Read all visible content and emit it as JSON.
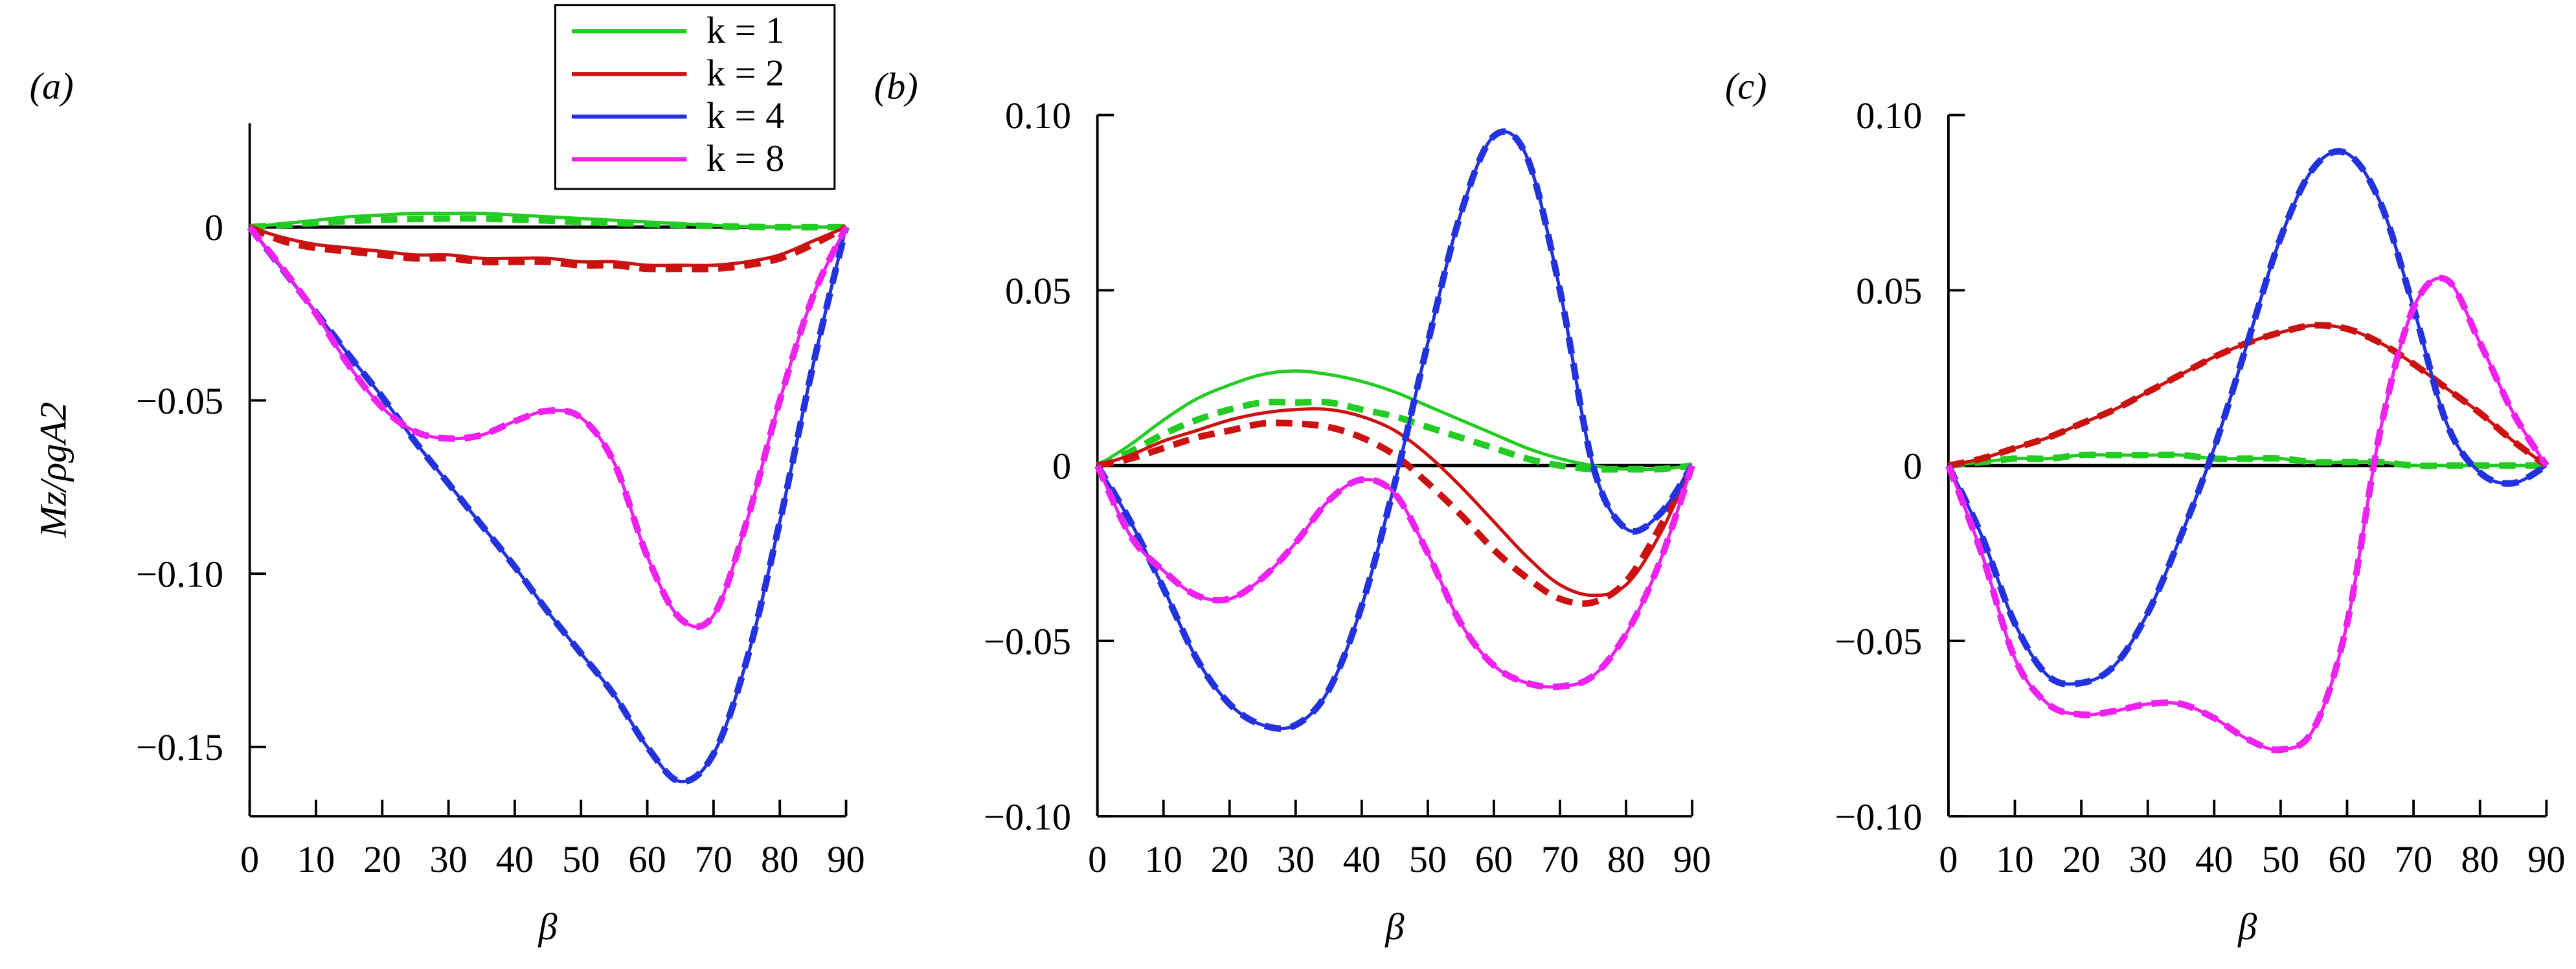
{
  "chart_data": [
    {
      "type": "line",
      "panel_label": "(a)",
      "xlabel": "β",
      "ylabel": "Mz/ρgA2",
      "x": [
        0,
        5,
        10,
        15,
        20,
        25,
        30,
        35,
        40,
        45,
        50,
        55,
        60,
        65,
        70,
        75,
        80,
        85,
        90
      ],
      "xlim": [
        0,
        90
      ],
      "xticks": [
        0,
        10,
        20,
        30,
        40,
        50,
        60,
        70,
        80,
        90
      ],
      "ylim": [
        -0.17,
        0.03
      ],
      "yticks": [
        0,
        {
          "value": -0.05,
          "label": "−0.05"
        },
        {
          "value": -0.1,
          "label": "−0.10"
        },
        {
          "value": -0.15,
          "label": "−0.15"
        }
      ],
      "legend": "top-center",
      "series": [
        {
          "name": "k = 1",
          "color": "#22cc22",
          "values": [
            0,
            0.001,
            0.002,
            0.003,
            0.0035,
            0.004,
            0.004,
            0.004,
            0.0035,
            0.003,
            0.0025,
            0.002,
            0.0015,
            0.001,
            0.0005,
            0.0002,
            0,
            0,
            0
          ],
          "dashed_values": [
            0,
            0.0006,
            0.0012,
            0.0018,
            0.0021,
            0.0024,
            0.0025,
            0.0025,
            0.0022,
            0.0019,
            0.0015,
            0.0012,
            0.0009,
            0.0006,
            0.0003,
            0.0001,
            0,
            0,
            0
          ]
        },
        {
          "name": "k = 2",
          "color": "#cc1111",
          "values": [
            0,
            -0.003,
            -0.005,
            -0.006,
            -0.007,
            -0.008,
            -0.008,
            -0.009,
            -0.009,
            -0.009,
            -0.01,
            -0.01,
            -0.011,
            -0.011,
            -0.011,
            -0.01,
            -0.008,
            -0.004,
            0
          ],
          "dashed_values": [
            0,
            -0.004,
            -0.006,
            -0.007,
            -0.008,
            -0.009,
            -0.009,
            -0.01,
            -0.01,
            -0.01,
            -0.011,
            -0.011,
            -0.012,
            -0.012,
            -0.012,
            -0.011,
            -0.009,
            -0.005,
            0
          ]
        },
        {
          "name": "k = 4",
          "color": "#2233dd",
          "values": [
            0,
            -0.0123,
            -0.0246,
            -0.037,
            -0.049,
            -0.062,
            -0.074,
            -0.086,
            -0.098,
            -0.111,
            -0.123,
            -0.135,
            -0.15,
            -0.16,
            -0.152,
            -0.125,
            -0.085,
            -0.04,
            0
          ],
          "dashed_values": [
            0,
            -0.0123,
            -0.0246,
            -0.037,
            -0.049,
            -0.062,
            -0.074,
            -0.086,
            -0.098,
            -0.111,
            -0.123,
            -0.135,
            -0.15,
            -0.16,
            -0.152,
            -0.125,
            -0.085,
            -0.04,
            0
          ]
        },
        {
          "name": "k = 8",
          "color": "#ee22ee",
          "values": [
            0,
            -0.012,
            -0.025,
            -0.04,
            -0.052,
            -0.059,
            -0.061,
            -0.06,
            -0.056,
            -0.053,
            -0.055,
            -0.068,
            -0.095,
            -0.113,
            -0.112,
            -0.085,
            -0.05,
            -0.02,
            0
          ],
          "dashed_values": [
            0,
            -0.012,
            -0.025,
            -0.04,
            -0.052,
            -0.059,
            -0.061,
            -0.06,
            -0.056,
            -0.053,
            -0.055,
            -0.068,
            -0.095,
            -0.113,
            -0.112,
            -0.085,
            -0.05,
            -0.02,
            0
          ]
        }
      ]
    },
    {
      "type": "line",
      "panel_label": "(b)",
      "xlabel": "β",
      "x": [
        0,
        5,
        10,
        15,
        20,
        25,
        30,
        35,
        40,
        45,
        50,
        55,
        60,
        65,
        70,
        75,
        80,
        85,
        90
      ],
      "xlim": [
        0,
        90
      ],
      "xticks": [
        0,
        10,
        20,
        30,
        40,
        50,
        60,
        70,
        80,
        90
      ],
      "ylim": [
        -0.1,
        0.1
      ],
      "yticks": [
        {
          "value": -0.1,
          "label": "−0.10"
        },
        {
          "value": -0.05,
          "label": "−0.05"
        },
        0,
        0.05,
        {
          "value": 0.1,
          "label": "0.10"
        }
      ],
      "series": [
        {
          "color": "#22cc22",
          "values": [
            0,
            0.006,
            0.013,
            0.019,
            0.023,
            0.026,
            0.027,
            0.026,
            0.024,
            0.021,
            0.017,
            0.013,
            0.009,
            0.005,
            0.002,
            0,
            -0.001,
            -0.001,
            0
          ],
          "dashed_values": [
            0,
            0.004,
            0.009,
            0.013,
            0.016,
            0.018,
            0.018,
            0.018,
            0.016,
            0.014,
            0.011,
            0.008,
            0.005,
            0.002,
            0,
            -0.001,
            -0.001,
            -0.001,
            0
          ]
        },
        {
          "color": "#cc1111",
          "values": [
            0,
            0.003,
            0.007,
            0.01,
            0.013,
            0.015,
            0.016,
            0.016,
            0.014,
            0.01,
            0.003,
            -0.006,
            -0.016,
            -0.026,
            -0.034,
            -0.037,
            -0.034,
            -0.02,
            0
          ],
          "dashed_values": [
            0,
            0.002,
            0.005,
            0.008,
            0.01,
            0.012,
            0.012,
            0.011,
            0.008,
            0.003,
            -0.005,
            -0.014,
            -0.024,
            -0.032,
            -0.038,
            -0.039,
            -0.033,
            -0.018,
            0
          ]
        },
        {
          "color": "#2233dd",
          "values": [
            0,
            -0.016,
            -0.035,
            -0.055,
            -0.068,
            -0.074,
            -0.074,
            -0.064,
            -0.04,
            -0.005,
            0.035,
            0.072,
            0.094,
            0.088,
            0.05,
            0,
            -0.018,
            -0.014,
            0
          ],
          "dashed_values": [
            0,
            -0.016,
            -0.035,
            -0.055,
            -0.068,
            -0.074,
            -0.074,
            -0.064,
            -0.04,
            -0.005,
            0.035,
            0.072,
            0.094,
            0.088,
            0.05,
            0,
            -0.018,
            -0.014,
            0
          ]
        },
        {
          "color": "#ee22ee",
          "values": [
            0,
            -0.02,
            -0.03,
            -0.037,
            -0.038,
            -0.032,
            -0.022,
            -0.01,
            -0.004,
            -0.008,
            -0.025,
            -0.045,
            -0.057,
            -0.062,
            -0.063,
            -0.06,
            -0.048,
            -0.028,
            0
          ],
          "dashed_values": [
            0,
            -0.02,
            -0.03,
            -0.037,
            -0.038,
            -0.032,
            -0.022,
            -0.01,
            -0.004,
            -0.008,
            -0.025,
            -0.045,
            -0.057,
            -0.062,
            -0.063,
            -0.06,
            -0.048,
            -0.028,
            0
          ]
        }
      ]
    },
    {
      "type": "line",
      "panel_label": "(c)",
      "xlabel": "β",
      "x": [
        0,
        5,
        10,
        15,
        20,
        25,
        30,
        35,
        40,
        45,
        50,
        55,
        60,
        65,
        70,
        75,
        80,
        85,
        90
      ],
      "xlim": [
        0,
        90
      ],
      "xticks": [
        0,
        10,
        20,
        30,
        40,
        50,
        60,
        70,
        80,
        90
      ],
      "ylim": [
        -0.1,
        0.1
      ],
      "yticks": [
        {
          "value": -0.1,
          "label": "−0.10"
        },
        {
          "value": -0.05,
          "label": "−0.05"
        },
        0,
        0.05,
        {
          "value": 0.1,
          "label": "0.10"
        }
      ],
      "series": [
        {
          "color": "#22cc22",
          "values": [
            0,
            0.001,
            0.002,
            0.002,
            0.003,
            0.003,
            0.003,
            0.003,
            0.002,
            0.002,
            0.002,
            0.001,
            0.001,
            0.001,
            0,
            0,
            0,
            0,
            0
          ],
          "dashed_values": [
            0,
            0.001,
            0.002,
            0.002,
            0.003,
            0.003,
            0.003,
            0.003,
            0.002,
            0.002,
            0.002,
            0.001,
            0.001,
            0.001,
            0,
            0,
            0,
            0,
            0
          ]
        },
        {
          "color": "#cc1111",
          "values": [
            0,
            0.002,
            0.005,
            0.008,
            0.012,
            0.016,
            0.021,
            0.026,
            0.031,
            0.035,
            0.038,
            0.04,
            0.039,
            0.035,
            0.029,
            0.022,
            0.015,
            0.007,
            0
          ],
          "dashed_values": [
            0,
            0.002,
            0.005,
            0.008,
            0.012,
            0.016,
            0.021,
            0.026,
            0.031,
            0.035,
            0.038,
            0.04,
            0.039,
            0.035,
            0.029,
            0.022,
            0.015,
            0.007,
            0
          ]
        },
        {
          "color": "#2233dd",
          "values": [
            0,
            -0.02,
            -0.045,
            -0.06,
            -0.062,
            -0.057,
            -0.042,
            -0.02,
            0.005,
            0.035,
            0.065,
            0.085,
            0.089,
            0.075,
            0.045,
            0.012,
            -0.002,
            -0.005,
            0
          ],
          "dashed_values": [
            0,
            -0.02,
            -0.045,
            -0.06,
            -0.062,
            -0.057,
            -0.042,
            -0.02,
            0.005,
            0.035,
            0.065,
            0.085,
            0.089,
            0.075,
            0.045,
            0.012,
            -0.002,
            -0.005,
            0
          ]
        },
        {
          "color": "#ee22ee",
          "values": [
            0,
            -0.025,
            -0.055,
            -0.068,
            -0.071,
            -0.07,
            -0.068,
            -0.068,
            -0.072,
            -0.078,
            -0.081,
            -0.075,
            -0.045,
            0.01,
            0.045,
            0.053,
            0.035,
            0.015,
            0
          ],
          "dashed_values": [
            0,
            -0.025,
            -0.055,
            -0.068,
            -0.071,
            -0.07,
            -0.068,
            -0.068,
            -0.072,
            -0.078,
            -0.081,
            -0.075,
            -0.045,
            0.01,
            0.045,
            0.053,
            0.035,
            0.015,
            0
          ]
        }
      ]
    }
  ]
}
